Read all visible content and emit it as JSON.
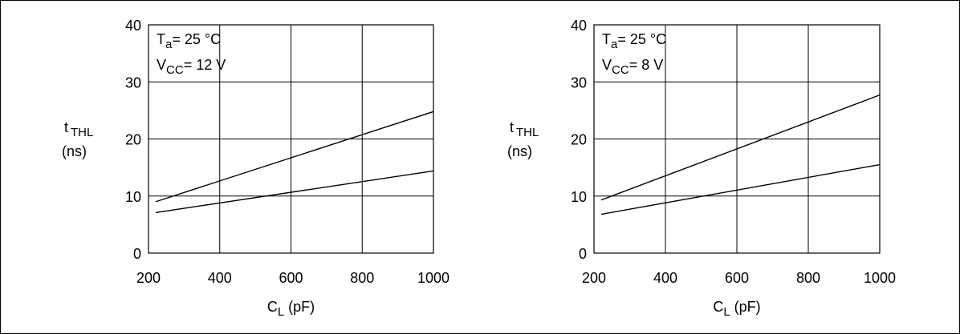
{
  "chart_data": [
    {
      "type": "line",
      "x_label_main": "C",
      "x_label_sub": "L",
      "x_label_unit": " (pF)",
      "y_label_main": "t",
      "y_label_sub": "THL",
      "y_label_unit": "(ns)",
      "xlim": [
        200,
        1000
      ],
      "ylim": [
        0,
        40
      ],
      "x_ticks": [
        200,
        400,
        600,
        800,
        1000
      ],
      "y_ticks": [
        0,
        10,
        20,
        30,
        40
      ],
      "grid": true,
      "annotations": [
        {
          "main": "T",
          "sub": "a",
          "rest": "= 25 °C"
        },
        {
          "main": "V",
          "sub": "CC",
          "rest": "= 12 V"
        }
      ],
      "series": [
        {
          "x": [
            220,
            1000
          ],
          "y": [
            9.0,
            24.8
          ]
        },
        {
          "x": [
            220,
            1000
          ],
          "y": [
            7.1,
            14.4
          ]
        }
      ]
    },
    {
      "type": "line",
      "x_label_main": "C",
      "x_label_sub": "L",
      "x_label_unit": " (pF)",
      "y_label_main": "t",
      "y_label_sub": "THL",
      "y_label_unit": "(ns)",
      "xlim": [
        200,
        1000
      ],
      "ylim": [
        0,
        40
      ],
      "x_ticks": [
        200,
        400,
        600,
        800,
        1000
      ],
      "y_ticks": [
        0,
        10,
        20,
        30,
        40
      ],
      "grid": true,
      "annotations": [
        {
          "main": "T",
          "sub": "a",
          "rest": "= 25 °C"
        },
        {
          "main": "V",
          "sub": "CC",
          "rest": "= 8 V"
        }
      ],
      "series": [
        {
          "x": [
            220,
            1000
          ],
          "y": [
            9.3,
            27.7
          ]
        },
        {
          "x": [
            220,
            1000
          ],
          "y": [
            6.8,
            15.5
          ]
        }
      ]
    }
  ]
}
